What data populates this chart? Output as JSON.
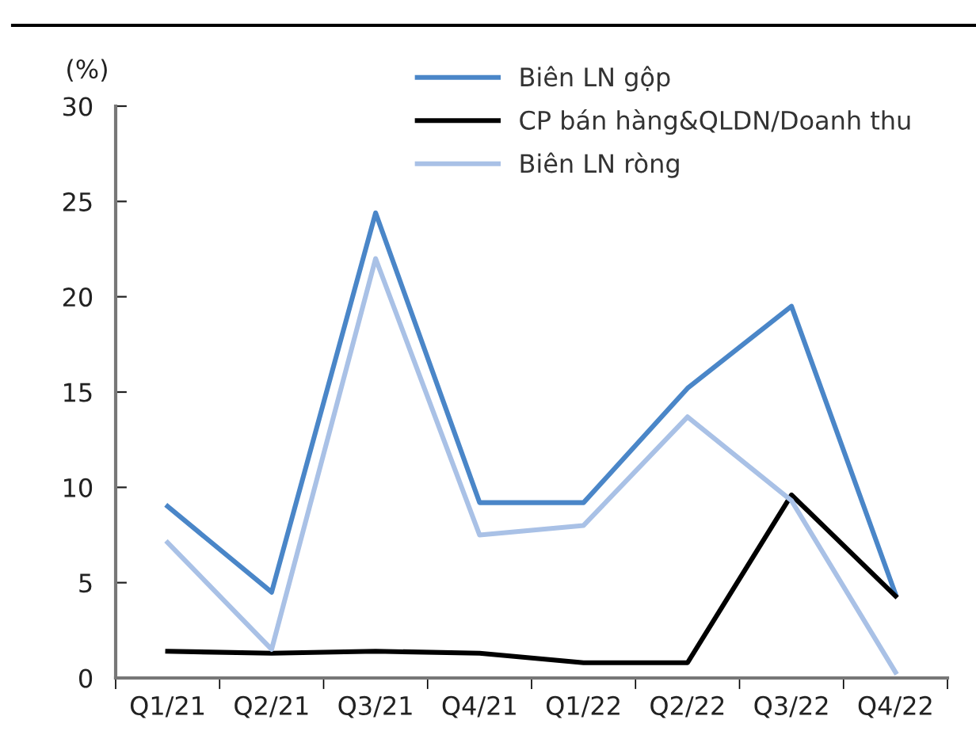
{
  "chart_data": {
    "type": "line",
    "ylabel": "(%)",
    "categories": [
      "Q1/21",
      "Q2/21",
      "Q3/21",
      "Q4/21",
      "Q1/22",
      "Q2/22",
      "Q3/22",
      "Q4/22"
    ],
    "series": [
      {
        "name": "Biên LN gộp",
        "color": "#4a86c8",
        "values": [
          9.0,
          4.5,
          24.4,
          9.2,
          9.2,
          15.2,
          19.5,
          4.4
        ]
      },
      {
        "name": "CP bán hàng&QLDN/Doanh thu",
        "color": "#000000",
        "values": [
          1.4,
          1.3,
          1.4,
          1.3,
          0.8,
          0.8,
          9.6,
          4.3
        ]
      },
      {
        "name": "Biên LN ròng",
        "color": "#a9c1e6",
        "values": [
          7.1,
          1.5,
          22.0,
          7.5,
          8.0,
          13.7,
          9.3,
          0.3
        ]
      }
    ],
    "ylim": [
      0,
      30
    ],
    "yticks": [
      0,
      5,
      10,
      15,
      20,
      25,
      30
    ],
    "grid": false,
    "legend": "top",
    "marker": "none",
    "line_style": "solid"
  }
}
